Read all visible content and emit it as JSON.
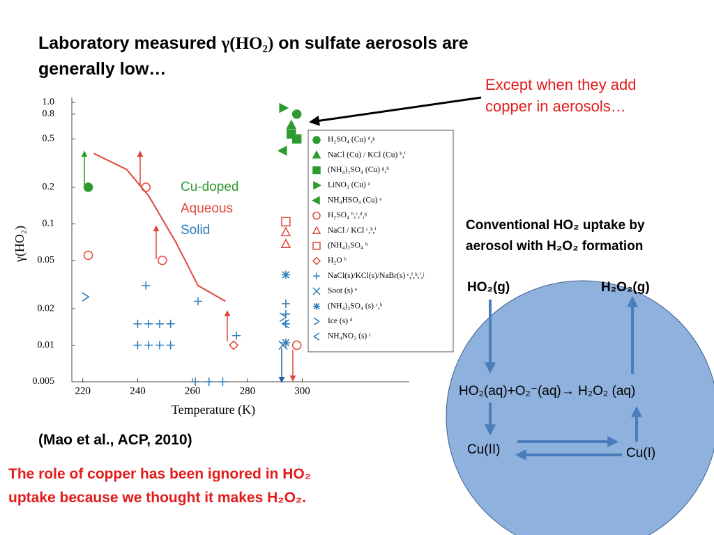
{
  "slide": {
    "title": [
      "Laboratory measured ",
      "γ(HO₂)",
      " on sulfate aerosols are",
      "generally low…"
    ],
    "callout": [
      "Except when they add",
      "copper in aerosols…"
    ],
    "citation": "(Mao et al., ACP, 2010)",
    "conclusion": [
      "The role of copper has been ignored in HO₂",
      "uptake because we thought it makes H₂O₂."
    ],
    "diagram": {
      "heading": [
        "Conventional HO₂ uptake by",
        "aerosol with H₂O₂ formation"
      ],
      "gas_in": "HO₂(g)",
      "gas_out": "H₂O₂(g)",
      "reaction": "HO₂(aq)+O₂⁻(aq)→ H₂O₂ (aq)",
      "cu2": "Cu(II)",
      "cu1": "Cu(I)"
    }
  },
  "chart_data": {
    "type": "scatter",
    "x_label": "Temperature (K)",
    "y_label": "γ(HO₂)",
    "xlim": [
      216,
      339
    ],
    "xticks": [
      220,
      240,
      260,
      280,
      300
    ],
    "ylim": [
      0.005,
      1
    ],
    "log_y": true,
    "yticks": [
      0.005,
      0.01,
      0.02,
      0.05,
      0.1,
      0.2,
      0.5,
      0.8,
      {
        "value": 1,
        "label": "1.0"
      }
    ],
    "annotations": [
      {
        "text": "Cu-doped",
        "color": "#2e9b2e"
      },
      {
        "text": "Aqueous",
        "color": "#e0463a"
      },
      {
        "text": "Solid",
        "color": "#2a7ab8"
      }
    ],
    "series": [
      {
        "name": "H₂SO₄ (Cu) ᵈ,ᵍ",
        "color": "#2e9b2e",
        "marker": "circle",
        "filled": true,
        "x": [
          298,
          222
        ],
        "values": [
          0.8,
          0.2
        ]
      },
      {
        "name": "NaCl (Cu) / KCl (Cu) ʰ,ⁱ",
        "color": "#2e9b2e",
        "marker": "triangle",
        "filled": true,
        "x": [
          296
        ],
        "values": [
          0.65
        ]
      },
      {
        "name": "(NH₄)₂SO₄ (Cu) ᵍ,ʰ",
        "color": "#2e9b2e",
        "marker": "square",
        "filled": true,
        "x": [
          296,
          298
        ],
        "values": [
          0.55,
          0.5
        ]
      },
      {
        "name": "LiNO₃ (Cu) ᵃ",
        "color": "#2e9b2e",
        "marker": "right",
        "filled": true,
        "x": [
          293
        ],
        "values": [
          0.9
        ]
      },
      {
        "name": "NH₄HSO₄ (Cu) ᵃ",
        "color": "#2e9b2e",
        "marker": "left",
        "filled": true,
        "x": [
          293
        ],
        "values": [
          0.4
        ]
      },
      {
        "name": "H₂SO₄ ᵇ,ᶜ,ᵈ,ᵍ",
        "color": "#e0463a",
        "marker": "circle",
        "filled": false,
        "x": [
          222,
          243,
          249,
          298
        ],
        "values": [
          0.055,
          0.2,
          0.05,
          0.01
        ]
      },
      {
        "name": "NaCl / KCl ᶜ,ʰ,ⁱ",
        "color": "#e0463a",
        "marker": "triangle",
        "filled": false,
        "x": [
          294,
          294
        ],
        "values": [
          0.085,
          0.068
        ]
      },
      {
        "name": "(NH₄)₂SO₄ ʰ",
        "color": "#e0463a",
        "marker": "square",
        "filled": false,
        "x": [
          294
        ],
        "values": [
          0.104
        ]
      },
      {
        "name": "H₂O ᵇ",
        "color": "#e0463a",
        "marker": "diamond",
        "filled": false,
        "x": [
          275
        ],
        "values": [
          0.01
        ]
      },
      {
        "name": "NaCl(s)/KCl(s)/NaBr(s) ᶜ,ᶠ,ʰ,ⁱ,ʲ",
        "color": "#2a7ab8",
        "marker": "plus",
        "filled": false,
        "x": [
          243,
          262,
          276,
          240,
          244,
          248,
          252,
          240,
          244,
          248,
          252,
          261,
          266,
          271,
          294,
          294,
          294
        ],
        "values": [
          0.031,
          0.023,
          0.012,
          0.015,
          0.015,
          0.015,
          0.015,
          0.01,
          0.01,
          0.01,
          0.01,
          0.005,
          0.005,
          0.005,
          0.022,
          0.018,
          0.015
        ]
      },
      {
        "name": "Soot (s) ᵉ",
        "color": "#2a7ab8",
        "marker": "cross",
        "filled": false,
        "x": [
          293
        ],
        "values": [
          0.01
        ]
      },
      {
        "name": "(NH₄)₂SO₄ (s) ᶜ,ʰ",
        "color": "#2a7ab8",
        "marker": "asterisk",
        "filled": false,
        "x": [
          294,
          294
        ],
        "values": [
          0.038,
          0.0105
        ]
      },
      {
        "name": "Ice (s) ᵈ",
        "color": "#2a7ab8",
        "marker": "gt",
        "filled": false,
        "x": [
          221,
          293
        ],
        "values": [
          0.025,
          0.017
        ]
      },
      {
        "name": "NH₄NO₃ (s) ᶜ",
        "color": "#2a7ab8",
        "marker": "lt",
        "filled": false,
        "x": [
          294
        ],
        "values": [
          0.015
        ]
      },
      {
        "color": "#e0463a",
        "marker": "line",
        "x": [
          224,
          236,
          244,
          254,
          262,
          272
        ],
        "values": [
          0.38,
          0.28,
          0.17,
          0.07,
          0.031,
          0.023
        ]
      }
    ]
  }
}
